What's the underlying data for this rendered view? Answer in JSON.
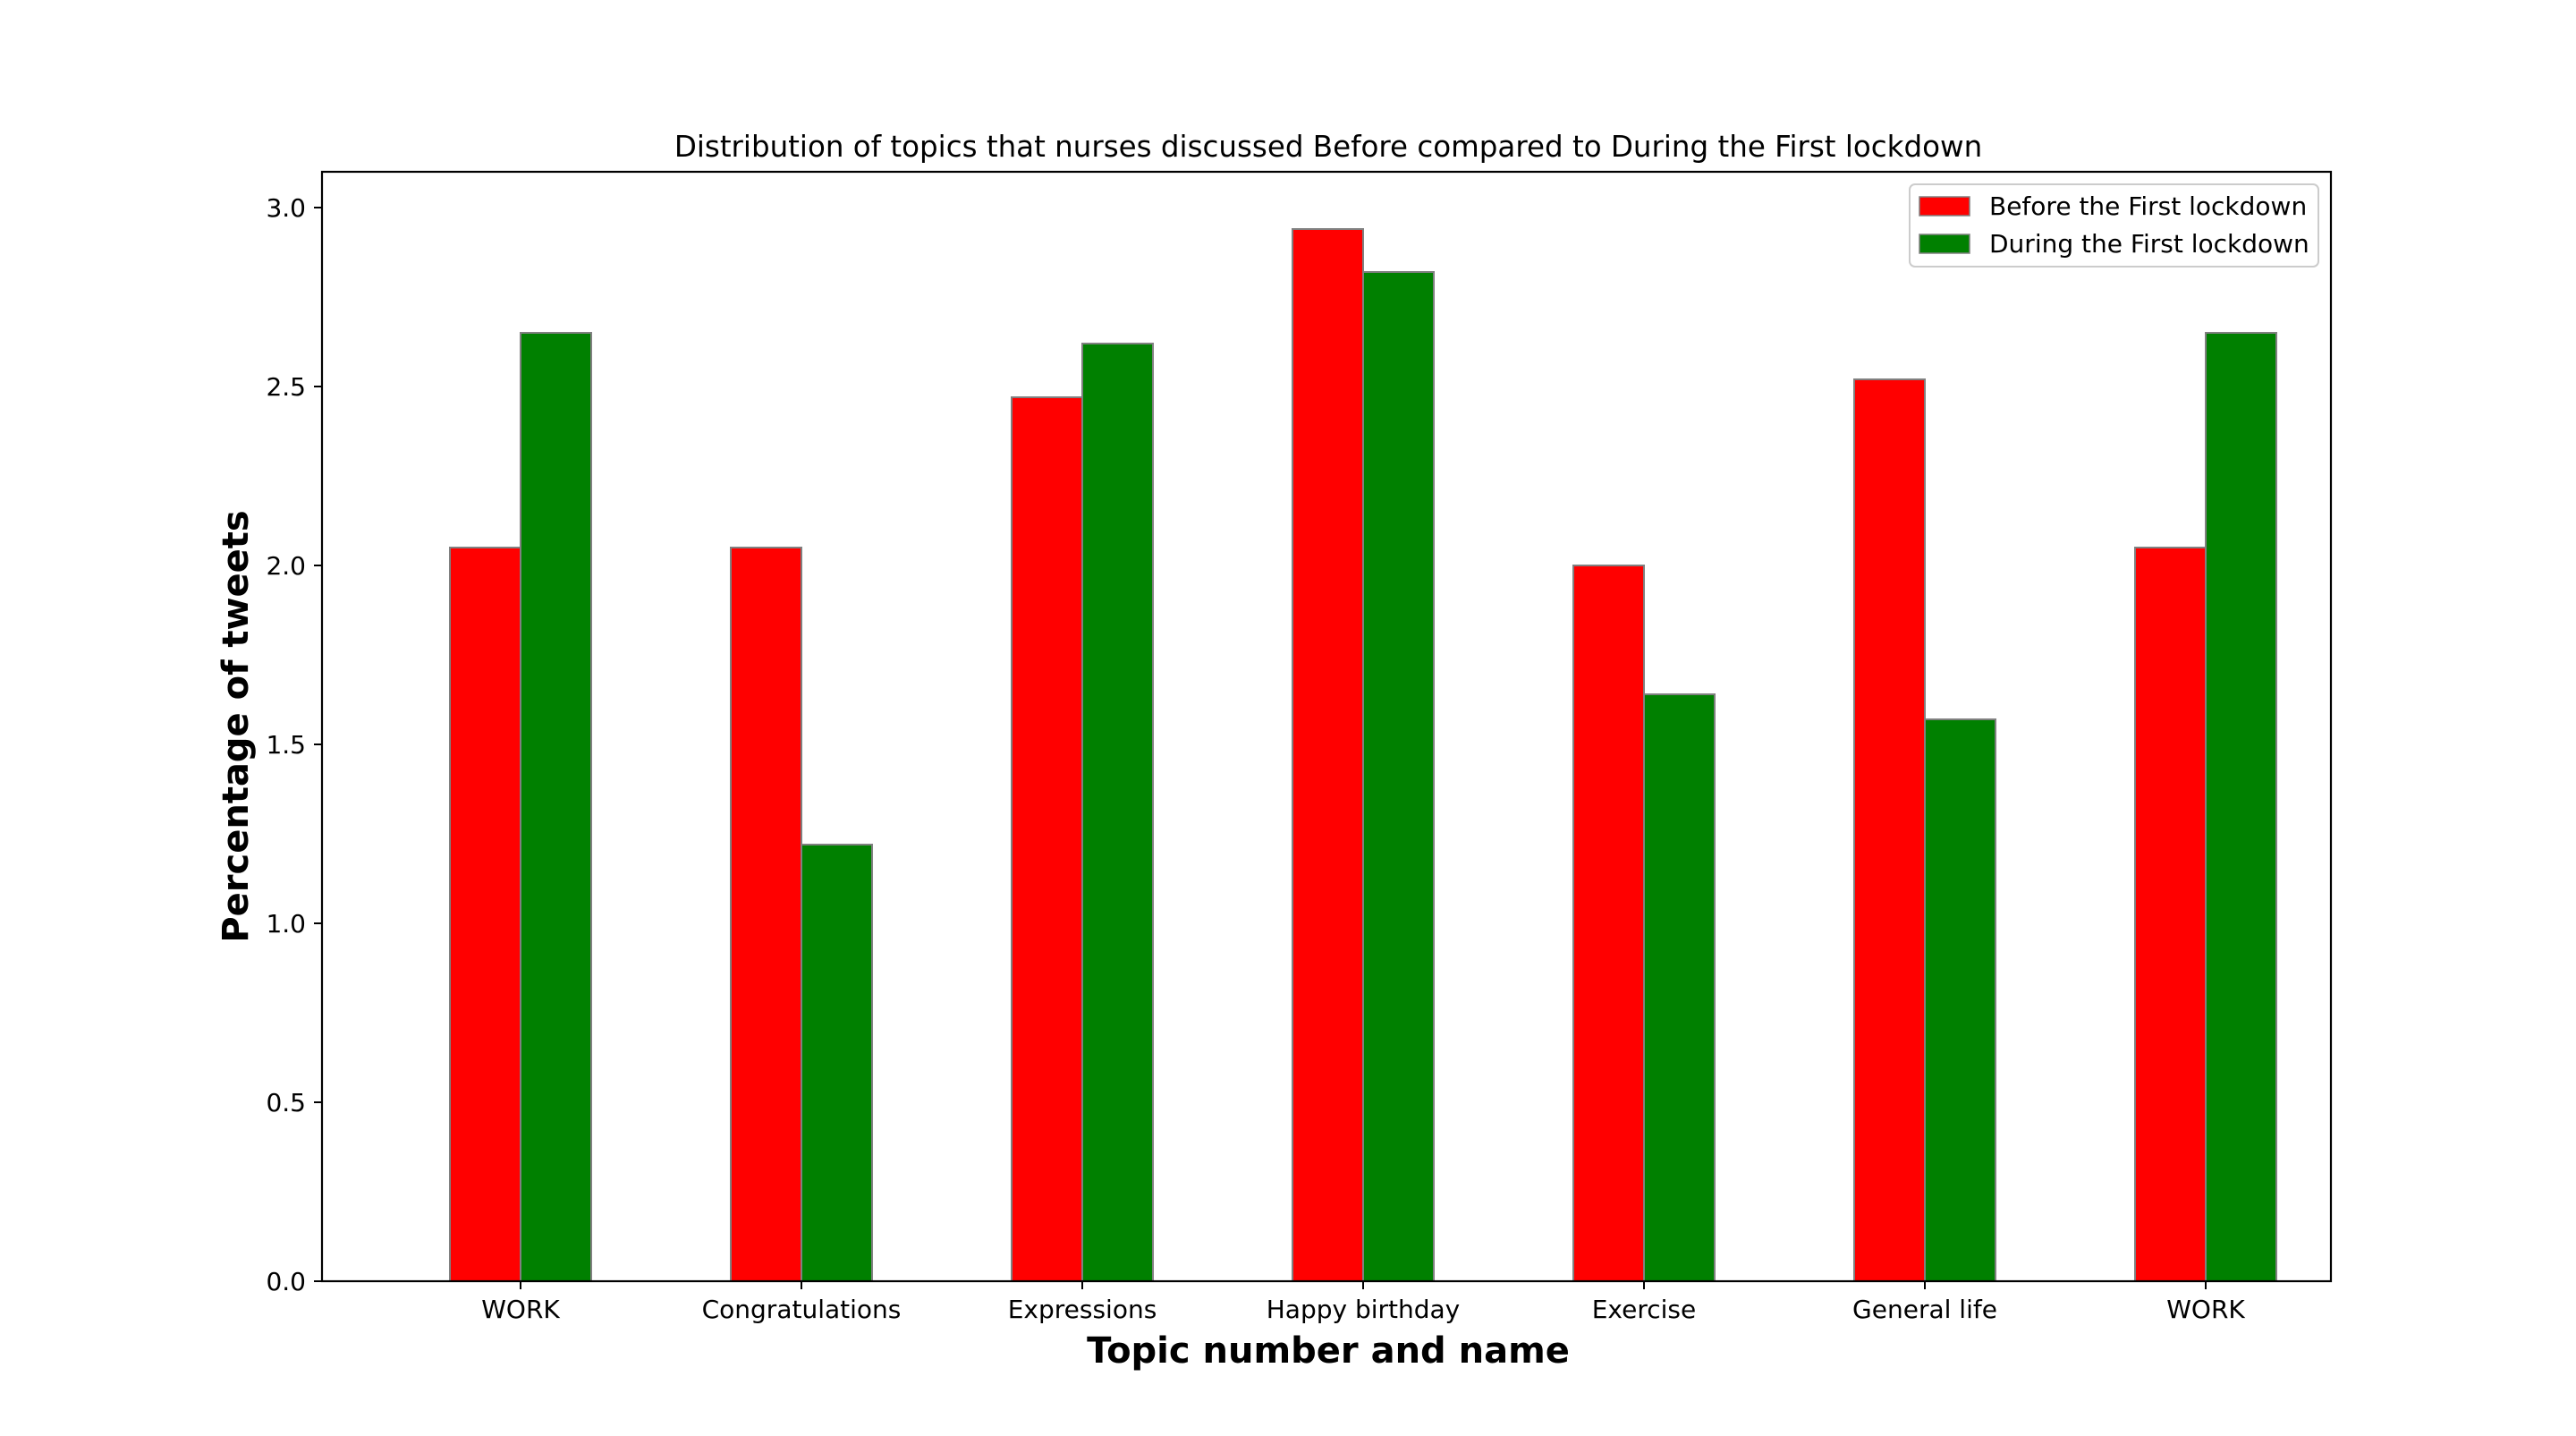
{
  "chart_data": {
    "type": "bar",
    "title": "Distribution of topics that nurses discussed Before compared to During the First lockdown",
    "xlabel": "Topic number and name",
    "ylabel": "Percentage of tweets",
    "categories": [
      "WORK",
      "Congratulations",
      "Expressions",
      "Happy birthday",
      "Exercise",
      "General life",
      "WORK"
    ],
    "series": [
      {
        "name": "Before the First lockdown",
        "color": "#ff0000",
        "values": [
          2.05,
          2.05,
          2.47,
          2.94,
          2.0,
          2.52,
          2.05
        ]
      },
      {
        "name": "During the First lockdown",
        "color": "#008000",
        "values": [
          2.65,
          1.22,
          2.62,
          2.82,
          1.64,
          1.57,
          2.65
        ]
      }
    ],
    "ylim": [
      0,
      3.1
    ],
    "yticks": [
      0.0,
      0.5,
      1.0,
      1.5,
      2.0,
      2.5,
      3.0
    ],
    "ytick_labels": [
      "0.0",
      "0.5",
      "1.0",
      "1.5",
      "2.0",
      "2.5",
      "3.0"
    ],
    "grid": false,
    "legend_position": "top-right",
    "bar_edge_color": "#808080"
  }
}
